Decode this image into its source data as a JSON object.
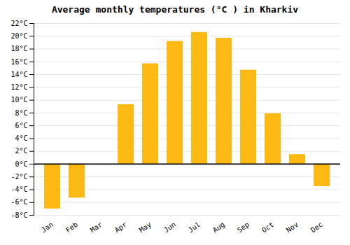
{
  "chart_data": {
    "type": "bar",
    "title": "Average monthly temperatures (°C ) in Kharkiv",
    "categories": [
      "Jan",
      "Feb",
      "Mar",
      "Apr",
      "May",
      "Jun",
      "Jul",
      "Aug",
      "Sep",
      "Oct",
      "Nov",
      "Dec"
    ],
    "values": [
      -7.0,
      -5.3,
      0.0,
      9.3,
      15.7,
      19.2,
      20.6,
      19.7,
      14.7,
      7.9,
      1.5,
      -3.5
    ],
    "color": "#FDB913",
    "ylim": [
      -8,
      22
    ],
    "yticks": [
      {
        "value": -8,
        "label": "-8°C"
      },
      {
        "value": -6,
        "label": "-6°C"
      },
      {
        "value": -4,
        "label": "-4°C"
      },
      {
        "value": -2,
        "label": "-2°C"
      },
      {
        "value": 0,
        "label": "0°C"
      },
      {
        "value": 2,
        "label": "2°C"
      },
      {
        "value": 4,
        "label": "4°C"
      },
      {
        "value": 6,
        "label": "6°C"
      },
      {
        "value": 8,
        "label": "8°C"
      },
      {
        "value": 10,
        "label": "10°C"
      },
      {
        "value": 12,
        "label": "12°C"
      },
      {
        "value": 14,
        "label": "14°C"
      },
      {
        "value": 16,
        "label": "16°C"
      },
      {
        "value": 18,
        "label": "18°C"
      },
      {
        "value": 20,
        "label": "20°C"
      },
      {
        "value": 22,
        "label": "22°C"
      }
    ],
    "grid": true
  }
}
